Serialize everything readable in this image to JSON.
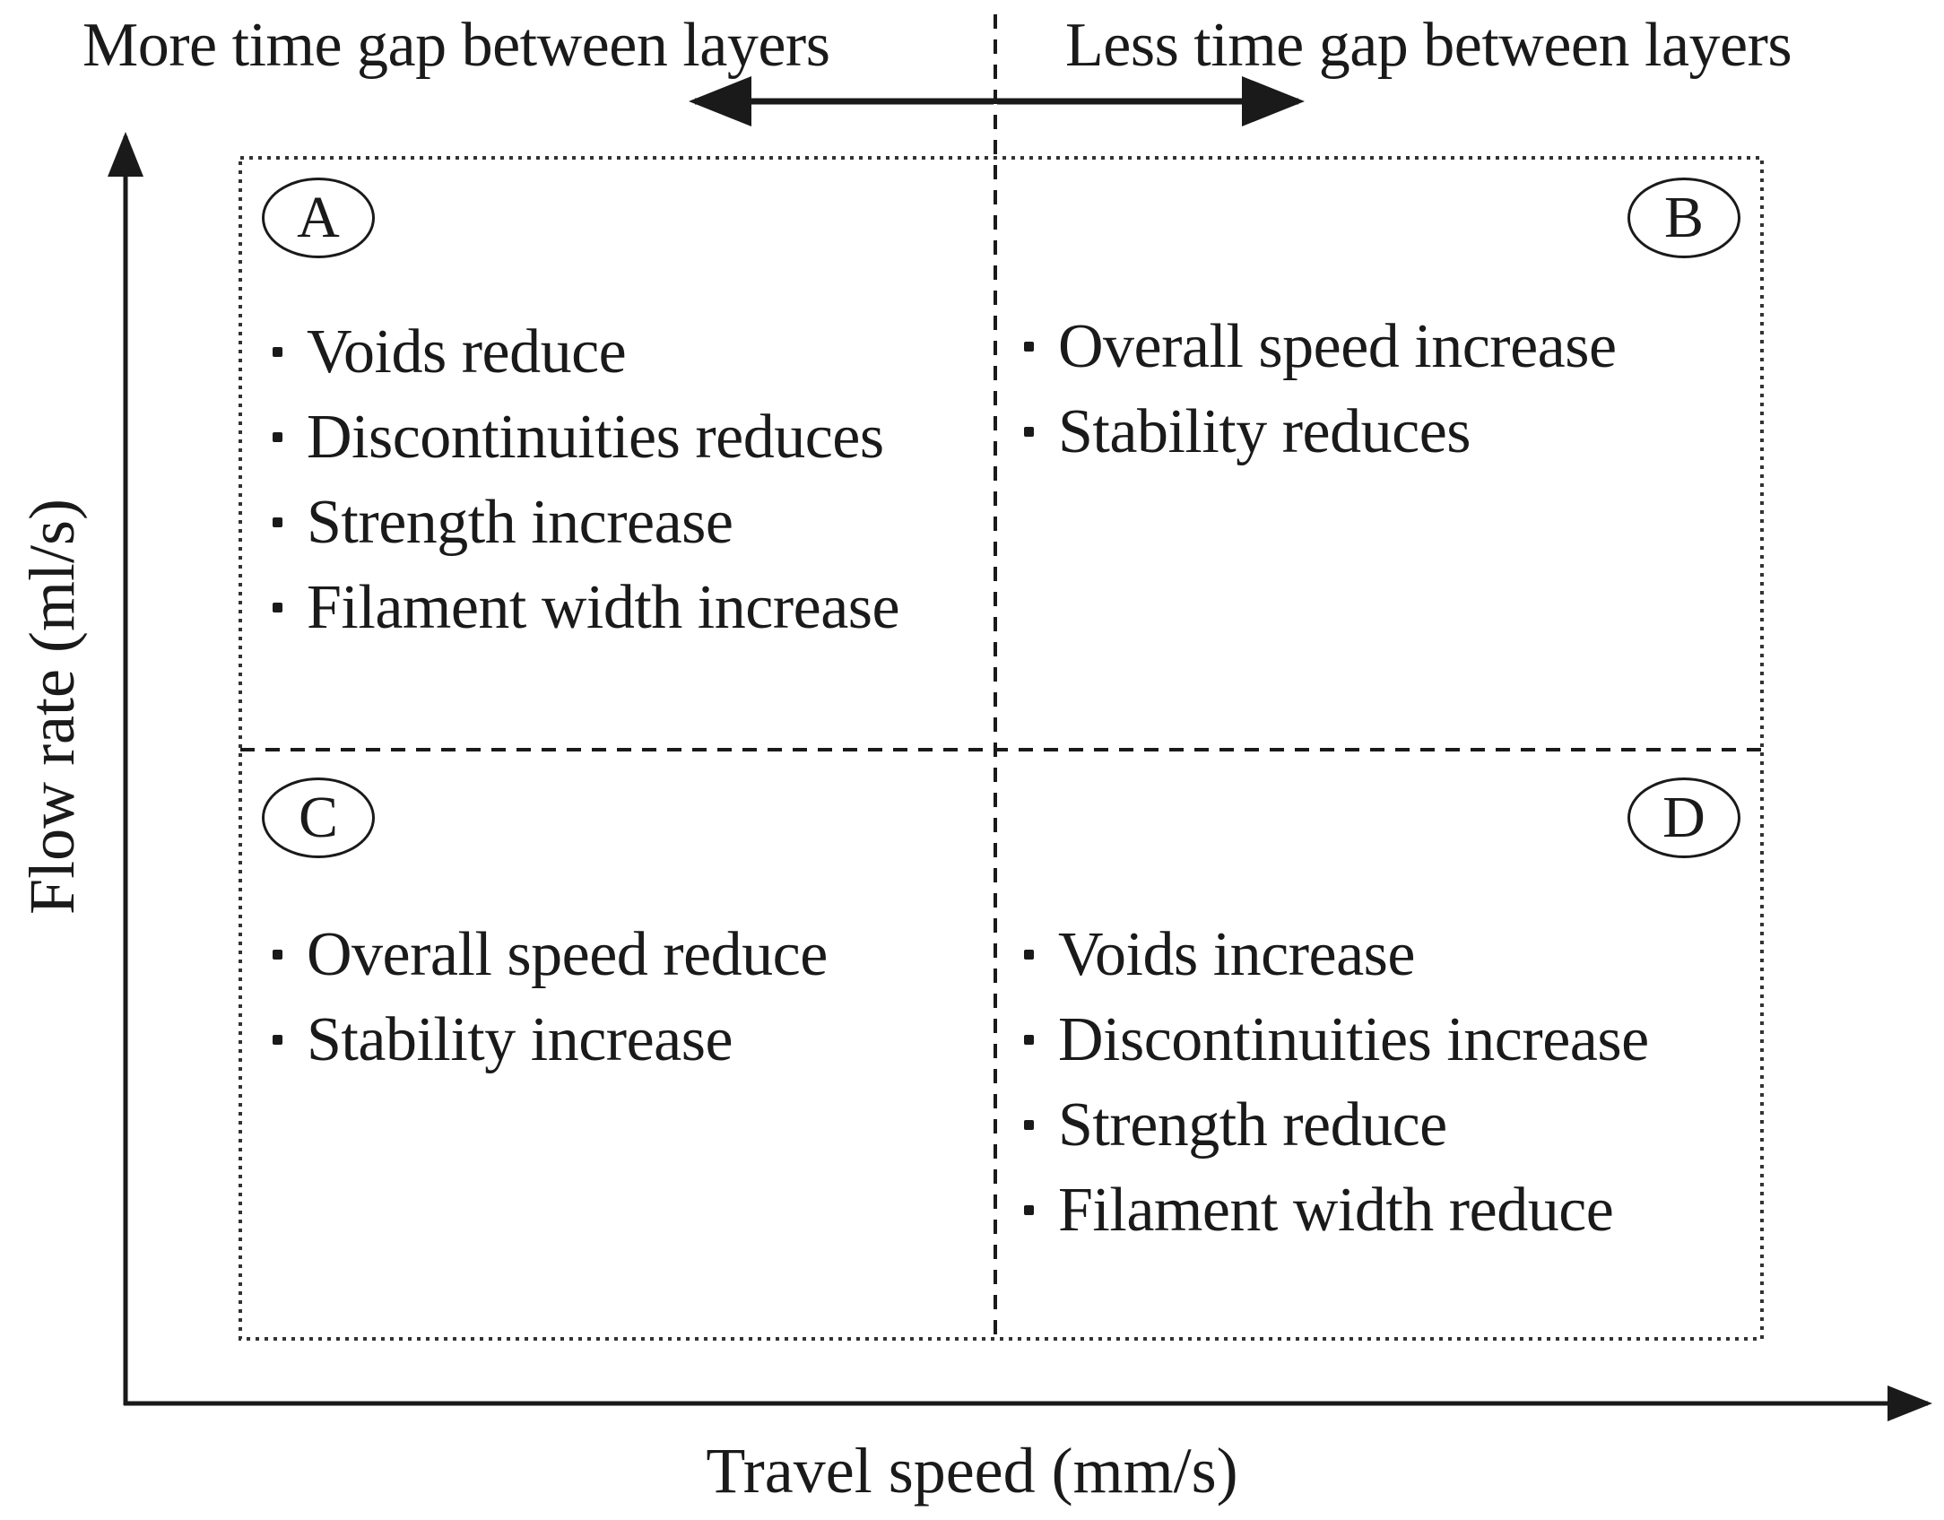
{
  "headings": {
    "left": "More time gap between layers",
    "right": "Less time gap between layers"
  },
  "axes": {
    "x_label": "Travel speed (mm/s)",
    "y_label": "Flow rate (ml/s)"
  },
  "quadrants": [
    {
      "id": "A",
      "items": [
        "Voids reduce",
        "Discontinuities reduces",
        "Strength increase",
        "Filament width increase"
      ]
    },
    {
      "id": "B",
      "items": [
        "Overall speed increase",
        "Stability reduces"
      ]
    },
    {
      "id": "C",
      "items": [
        "Overall speed reduce",
        "Stability increase"
      ]
    },
    {
      "id": "D",
      "items": [
        "Voids increase",
        "Discontinuities increase",
        "Strength reduce",
        "Filament width reduce"
      ]
    }
  ],
  "colors": {
    "ink": "#1a1a1a",
    "background": "#ffffff"
  }
}
